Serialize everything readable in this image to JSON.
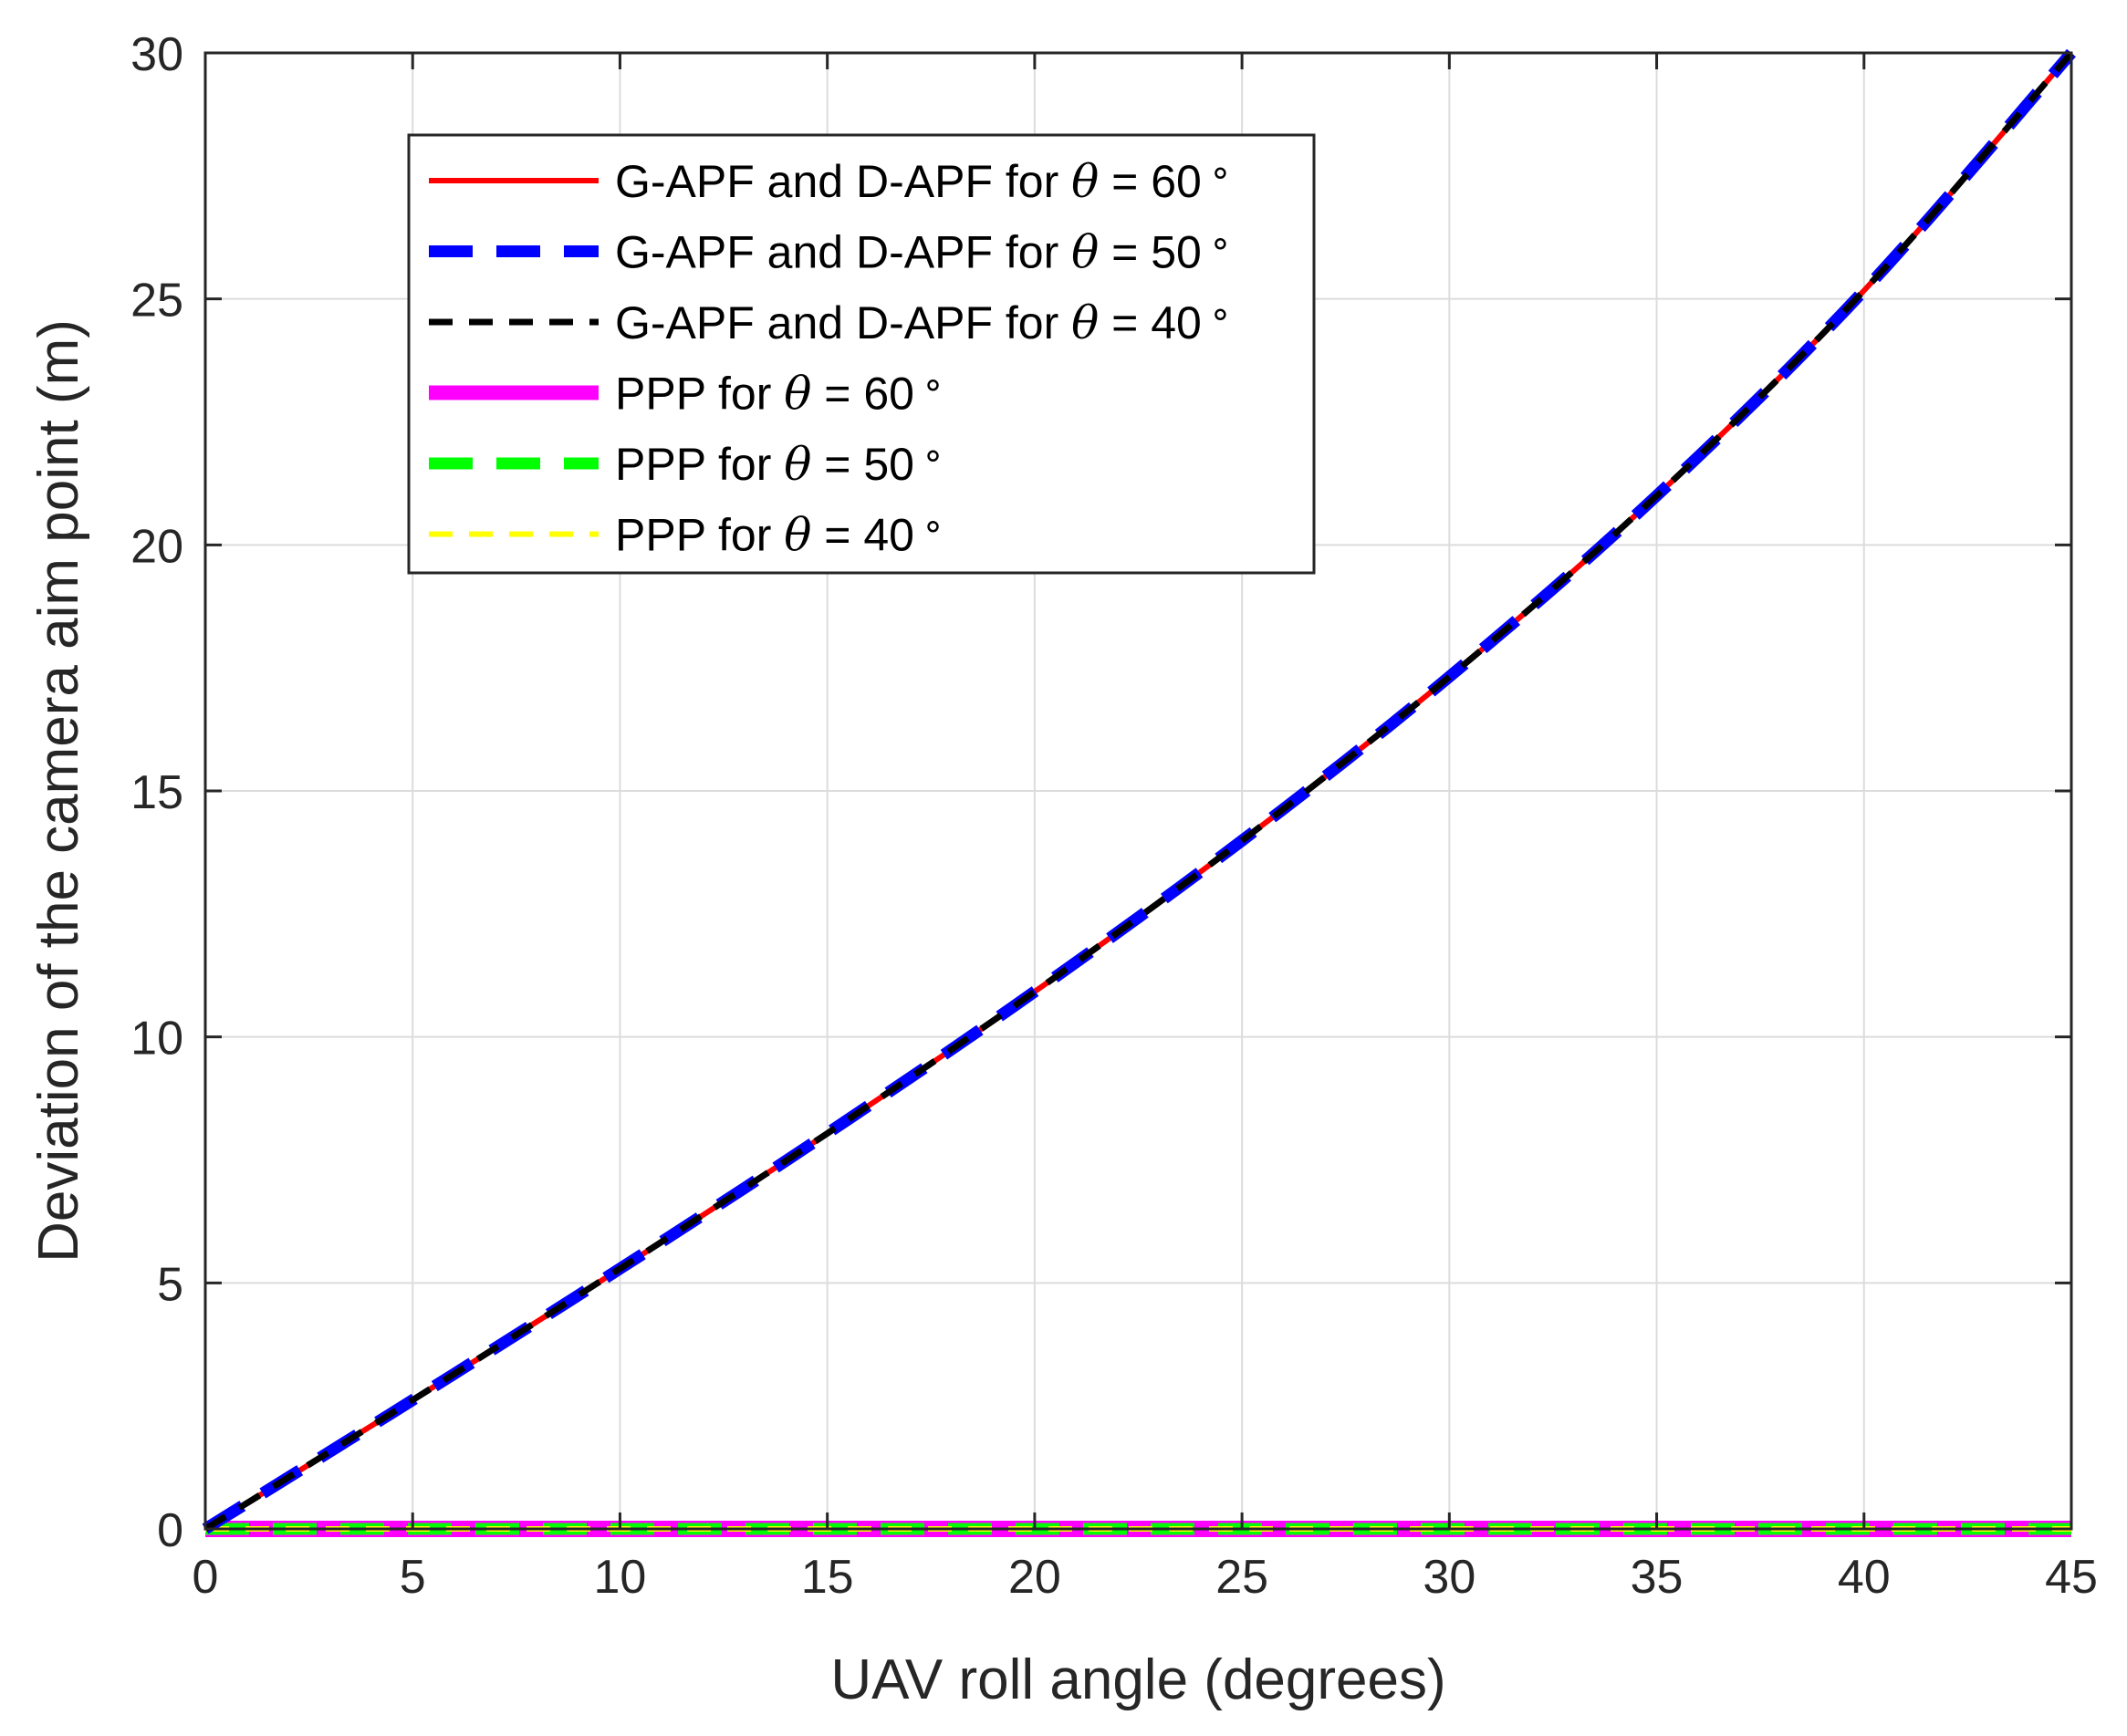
{
  "chart_data": {
    "type": "line",
    "title": "",
    "xlabel": "UAV roll angle (degrees)",
    "ylabel": "Deviation of the camera aim point (m)",
    "xlim": [
      0,
      45
    ],
    "ylim": [
      0,
      30
    ],
    "xticks": [
      0,
      5,
      10,
      15,
      20,
      25,
      30,
      35,
      40,
      45
    ],
    "yticks": [
      0,
      5,
      10,
      15,
      20,
      25,
      30
    ],
    "grid": true,
    "legend_position": "top-left",
    "x": [
      0,
      5,
      10,
      15,
      20,
      25,
      30,
      35,
      40,
      45
    ],
    "series": [
      {
        "name": "G-APF and D-APF for",
        "theta": "60",
        "color": "#ff0000",
        "style": "solid",
        "values": [
          0,
          2.62,
          5.29,
          8.04,
          10.92,
          13.99,
          17.32,
          21.0,
          25.17,
          30.0
        ]
      },
      {
        "name": "G-APF and D-APF for",
        "theta": "50",
        "color": "#0000ff",
        "style": "long-dash",
        "values": [
          0,
          2.62,
          5.29,
          8.04,
          10.92,
          13.99,
          17.32,
          21.0,
          25.17,
          30.0
        ]
      },
      {
        "name": "G-APF and D-APF for",
        "theta": "40",
        "color": "#000000",
        "style": "dash",
        "values": [
          0,
          2.62,
          5.29,
          8.04,
          10.92,
          13.99,
          17.32,
          21.0,
          25.17,
          30.0
        ]
      },
      {
        "name": "PPP for",
        "theta": "60",
        "color": "#ff00ff",
        "style": "solid-thick",
        "values": [
          0,
          0,
          0,
          0,
          0,
          0,
          0,
          0,
          0,
          0
        ]
      },
      {
        "name": "PPP for",
        "theta": "50",
        "color": "#00ff00",
        "style": "long-dash",
        "values": [
          0,
          0,
          0,
          0,
          0,
          0,
          0,
          0,
          0,
          0
        ]
      },
      {
        "name": "PPP for",
        "theta": "40",
        "color": "#ffff00",
        "style": "dash",
        "values": [
          0,
          0,
          0,
          0,
          0,
          0,
          0,
          0,
          0,
          0
        ]
      }
    ],
    "legend_symbol": "θ",
    "legend_equals": "=",
    "legend_degree": "∘"
  }
}
